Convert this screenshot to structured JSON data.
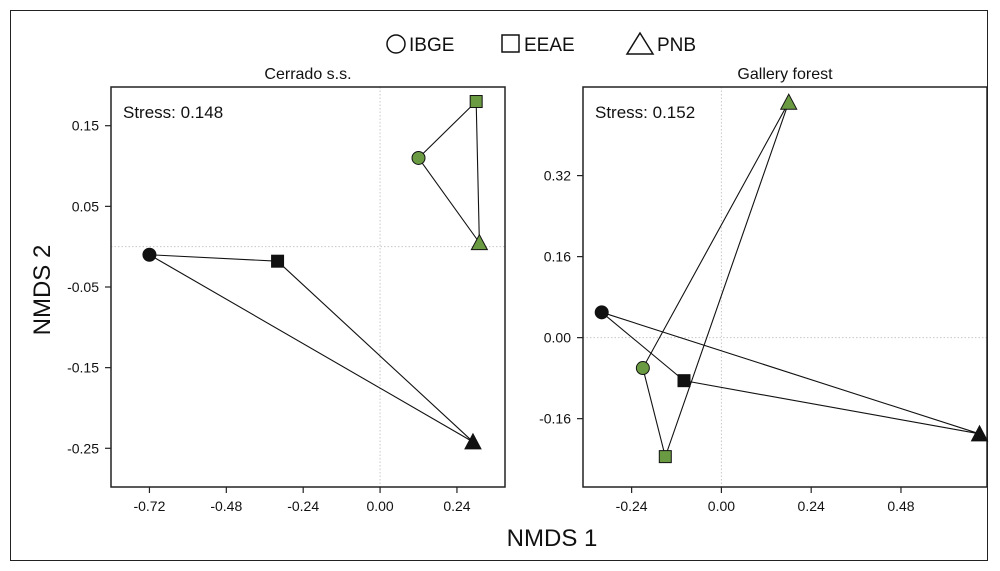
{
  "legend": {
    "items": [
      {
        "label": "IBGE",
        "shape": "circle"
      },
      {
        "label": "EEAE",
        "shape": "square"
      },
      {
        "label": "PNB",
        "shape": "triangle"
      }
    ]
  },
  "figure": {
    "xlabel": "NMDS 1",
    "ylabel": "NMDS 2"
  },
  "colors": {
    "black": "#111111",
    "green": "#6a9a42",
    "gridline": "#c8c8c8",
    "axis": "#222222"
  },
  "chart_data": [
    {
      "type": "scatter",
      "title": "Cerrado s.s.",
      "stress": "Stress: 0.148",
      "xlim": [
        -0.84,
        0.39
      ],
      "ylim": [
        -0.298,
        0.198
      ],
      "xticks": [
        -0.72,
        -0.48,
        -0.24,
        0.0,
        0.24
      ],
      "xtick_labels": [
        "-0.72",
        "-0.48",
        "-0.24",
        "0.00",
        "0.24"
      ],
      "yticks": [
        -0.25,
        -0.15,
        -0.05,
        0.05,
        0.15
      ],
      "ytick_labels": [
        "-0.25",
        "-0.15",
        "-0.05",
        "0.05",
        "0.15"
      ],
      "grid": "dotted zero lines",
      "groups": [
        {
          "color": "black",
          "points": [
            {
              "site": "IBGE",
              "shape": "circle",
              "x": -0.72,
              "y": -0.01
            },
            {
              "site": "EEAE",
              "shape": "square",
              "x": -0.32,
              "y": -0.018
            },
            {
              "site": "PNB",
              "shape": "triangle",
              "x": 0.29,
              "y": -0.242
            }
          ]
        },
        {
          "color": "green",
          "points": [
            {
              "site": "IBGE",
              "shape": "circle",
              "x": 0.12,
              "y": 0.11
            },
            {
              "site": "EEAE",
              "shape": "square",
              "x": 0.3,
              "y": 0.18
            },
            {
              "site": "PNB",
              "shape": "triangle",
              "x": 0.31,
              "y": 0.005
            }
          ]
        }
      ]
    },
    {
      "type": "scatter",
      "title": "Gallery forest",
      "stress": "Stress: 0.152",
      "xlim": [
        -0.37,
        0.71
      ],
      "ylim": [
        -0.295,
        0.495
      ],
      "xticks": [
        -0.24,
        0.0,
        0.24,
        0.48
      ],
      "xtick_labels": [
        "-0.24",
        "0.00",
        "0.24",
        "0.48"
      ],
      "yticks": [
        -0.16,
        0.0,
        0.16,
        0.32
      ],
      "ytick_labels": [
        "-0.16",
        "0.00",
        "0.16",
        "0.32"
      ],
      "grid": "dotted zero lines",
      "groups": [
        {
          "color": "black",
          "points": [
            {
              "site": "IBGE",
              "shape": "circle",
              "x": -0.32,
              "y": 0.05
            },
            {
              "site": "EEAE",
              "shape": "square",
              "x": -0.1,
              "y": -0.085
            },
            {
              "site": "PNB",
              "shape": "triangle",
              "x": 0.69,
              "y": -0.19
            }
          ]
        },
        {
          "color": "green",
          "points": [
            {
              "site": "IBGE",
              "shape": "circle",
              "x": -0.21,
              "y": -0.06
            },
            {
              "site": "EEAE",
              "shape": "square",
              "x": -0.15,
              "y": -0.235
            },
            {
              "site": "PNB",
              "shape": "triangle",
              "x": 0.18,
              "y": 0.465
            }
          ]
        }
      ]
    }
  ]
}
